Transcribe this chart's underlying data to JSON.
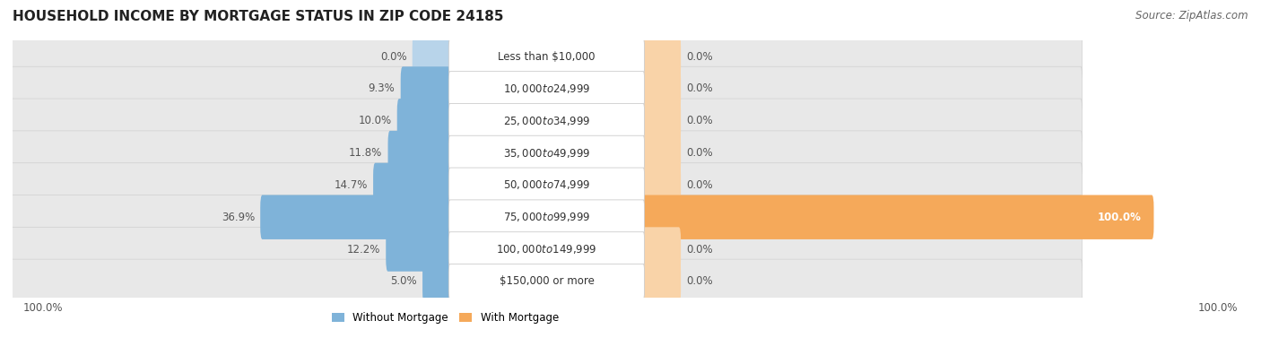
{
  "title": "HOUSEHOLD INCOME BY MORTGAGE STATUS IN ZIP CODE 24185",
  "source": "Source: ZipAtlas.com",
  "categories": [
    "Less than $10,000",
    "$10,000 to $24,999",
    "$25,000 to $34,999",
    "$35,000 to $49,999",
    "$50,000 to $74,999",
    "$75,000 to $99,999",
    "$100,000 to $149,999",
    "$150,000 or more"
  ],
  "without_mortgage": [
    0.0,
    9.3,
    10.0,
    11.8,
    14.7,
    36.9,
    12.2,
    5.0
  ],
  "with_mortgage": [
    0.0,
    0.0,
    0.0,
    0.0,
    0.0,
    100.0,
    0.0,
    0.0
  ],
  "color_without": "#7fb3d9",
  "color_with": "#f5a95a",
  "color_with_light": "#f9d3a8",
  "color_without_light": "#b8d4ea",
  "row_bg_color": "#e8e8e8",
  "row_border_color": "#d0d0d0",
  "left_axis_label": "100.0%",
  "right_axis_label": "100.0%",
  "legend_without": "Without Mortgage",
  "legend_with": "With Mortgage",
  "title_fontsize": 11,
  "source_fontsize": 8.5,
  "label_fontsize": 8.5,
  "category_fontsize": 8.5,
  "bar_max": 100.0,
  "small_bar_width": 7.0
}
